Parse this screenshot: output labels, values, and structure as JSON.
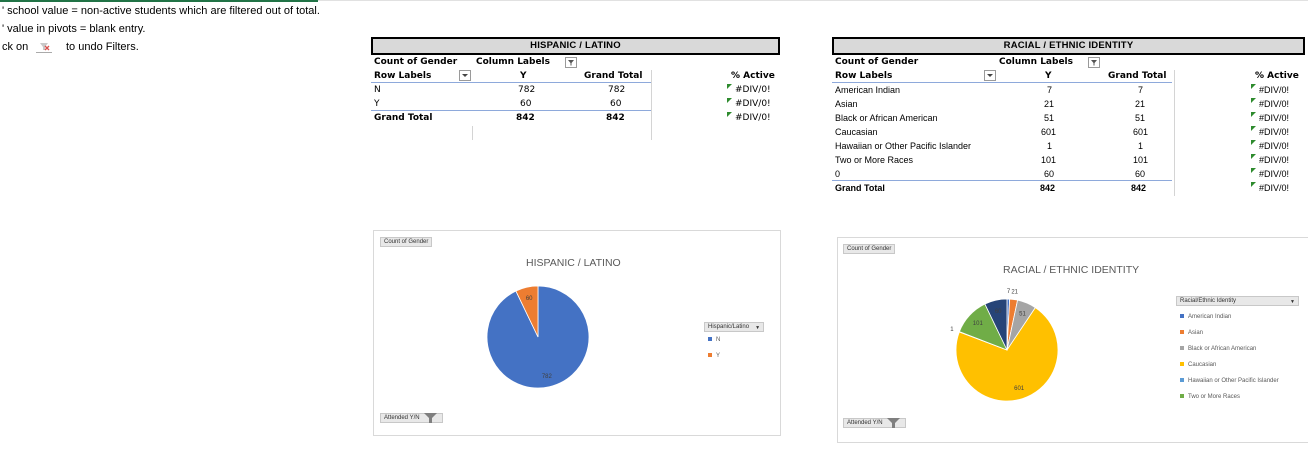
{
  "notes": [
    "' school value = non-active students which are filtered out of total.",
    "' value in pivots = blank entry.",
    "ck on",
    "to undo Filters."
  ],
  "pivot_hispanic": {
    "title": "HISPANIC / LATINO",
    "count_label": "Count of Gender",
    "column_labels": "Column Labels",
    "row_labels": "Row Labels",
    "col_y": "Y",
    "col_total": "Grand Total",
    "active_header": "% Active",
    "rows": [
      {
        "label": "N",
        "y": "782",
        "total": "782",
        "active": "#DIV/0!"
      },
      {
        "label": "Y",
        "y": "60",
        "total": "60",
        "active": "#DIV/0!"
      }
    ],
    "grand_total": {
      "label": "Grand Total",
      "y": "842",
      "total": "842",
      "active": "#DIV/0!"
    }
  },
  "pivot_racial": {
    "title": "RACIAL / ETHNIC IDENTITY",
    "count_label": "Count of Gender",
    "column_labels": "Column Labels",
    "row_labels": "Row Labels",
    "col_y": "Y",
    "col_total": "Grand Total",
    "active_header": "% Active",
    "rows": [
      {
        "label": "American Indian",
        "y": "7",
        "total": "7",
        "active": "#DIV/0!"
      },
      {
        "label": "Asian",
        "y": "21",
        "total": "21",
        "active": "#DIV/0!"
      },
      {
        "label": "Black or African American",
        "y": "51",
        "total": "51",
        "active": "#DIV/0!"
      },
      {
        "label": "Caucasian",
        "y": "601",
        "total": "601",
        "active": "#DIV/0!"
      },
      {
        "label": "Hawaiian or Other Pacific Islander",
        "y": "1",
        "total": "1",
        "active": "#DIV/0!"
      },
      {
        "label": "Two or More Races",
        "y": "101",
        "total": "101",
        "active": "#DIV/0!"
      },
      {
        "label": "0",
        "y": "60",
        "total": "60",
        "active": "#DIV/0!"
      }
    ],
    "grand_total": {
      "label": "Grand Total",
      "y": "842",
      "total": "842",
      "active": "#DIV/0!"
    }
  },
  "chart_hispanic": {
    "field_button": "Count of Gender",
    "filter_button": "Attended Y/N",
    "legend_title": "Hispanic/Latino",
    "colors": [
      "#4472c4",
      "#ed7d31"
    ]
  },
  "chart_racial": {
    "field_button": "Count of Gender",
    "filter_button": "Attended Y/N",
    "legend_title": "Racial/Ethnic Identity",
    "colors": [
      "#4472c4",
      "#ed7d31",
      "#a5a5a5",
      "#ffc000",
      "#5b9bd5",
      "#70ad47",
      "#264478"
    ]
  },
  "chart_data": [
    {
      "type": "pie",
      "title": "HISPANIC / LATINO",
      "categories": [
        "N",
        "Y"
      ],
      "values": [
        782,
        60
      ],
      "legend": "right"
    },
    {
      "type": "pie",
      "title": "RACIAL / ETHNIC IDENTITY",
      "categories": [
        "American Indian",
        "Asian",
        "Black or African American",
        "Caucasian",
        "Hawaiian or Other Pacific Islander",
        "Two or More Races",
        ""
      ],
      "values": [
        7,
        21,
        51,
        601,
        1,
        101,
        60
      ],
      "legend": "right"
    }
  ]
}
